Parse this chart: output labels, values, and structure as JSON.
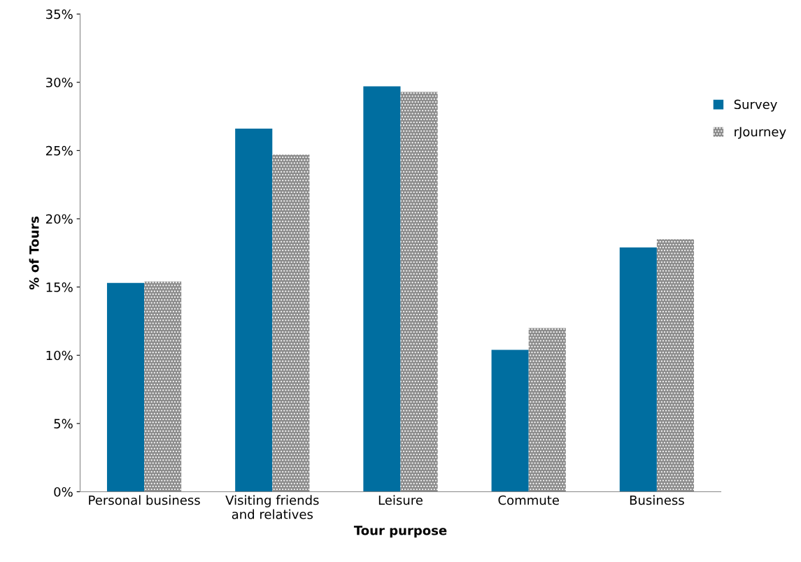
{
  "chart_data": {
    "type": "bar",
    "xlabel": "Tour purpose",
    "ylabel": "% of Tours",
    "categories": [
      "Personal business",
      "Visiting friends\nand relatives",
      "Leisure",
      "Commute",
      "Business"
    ],
    "series": [
      {
        "name": "Survey",
        "color": "#006ea0",
        "values": [
          15.3,
          26.6,
          29.7,
          10.4,
          17.9
        ]
      },
      {
        "name": "rJourney",
        "color": "#8c8c8c",
        "values": [
          15.4,
          24.7,
          29.3,
          12.0,
          18.5
        ]
      }
    ],
    "ylim": [
      0,
      35
    ],
    "yticks": [
      {
        "value": 0,
        "label": "0%"
      },
      {
        "value": 5,
        "label": "5%"
      },
      {
        "value": 10,
        "label": "10%"
      },
      {
        "value": 15,
        "label": "15%"
      },
      {
        "value": 20,
        "label": "20%"
      },
      {
        "value": 25,
        "label": "25%"
      },
      {
        "value": 30,
        "label": "30%"
      },
      {
        "value": 35,
        "label": "35%"
      }
    ],
    "grid": false,
    "legend": "right"
  }
}
